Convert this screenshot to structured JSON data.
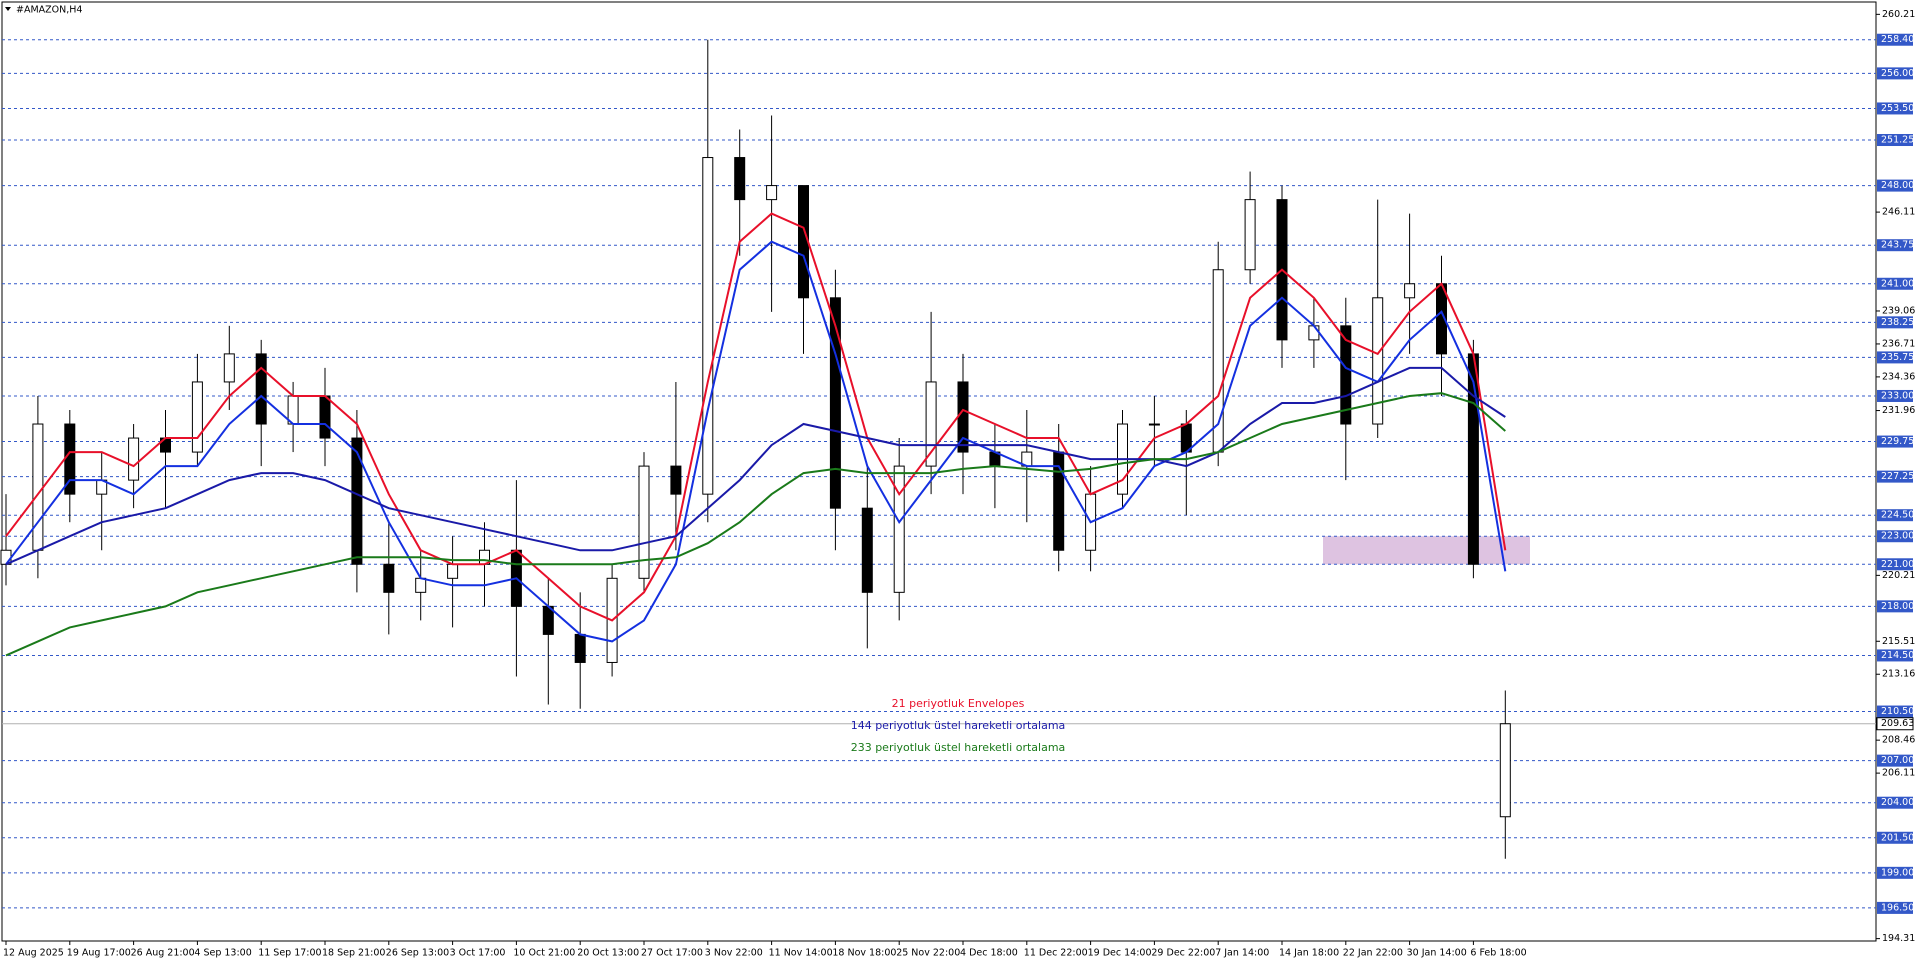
{
  "chart_data": {
    "type": "candlestick",
    "title": "#AMAZON,H4",
    "categories": [
      "12 Aug 2025",
      null,
      "19 Aug 17:00",
      null,
      "26 Aug 21:00",
      null,
      "4 Sep 13:00",
      null,
      "11 Sep 17:00",
      null,
      "18 Sep 21:00",
      null,
      "26 Sep 13:00",
      null,
      "3 Oct 17:00",
      null,
      "10 Oct 21:00",
      null,
      "20 Oct 13:00",
      null,
      "27 Oct 17:00",
      null,
      "3 Nov 22:00",
      null,
      "11 Nov 14:00",
      null,
      "18 Nov 18:00",
      null,
      "25 Nov 22:00",
      null,
      "4 Dec 18:00",
      null,
      "11 Dec 22:00",
      null,
      "19 Dec 14:00",
      null,
      "29 Dec 22:00",
      null,
      "7 Jan 14:00",
      null,
      "14 Jan 18:00",
      null,
      "22 Jan 22:00",
      null,
      "30 Jan 14:00",
      null,
      "6 Feb 18:00",
      null
    ],
    "open": [
      221,
      222,
      231,
      226,
      227,
      230,
      229,
      234,
      236,
      231,
      233,
      230,
      221,
      219,
      220,
      221,
      222,
      218,
      216,
      214,
      220,
      228,
      226,
      250,
      247,
      248,
      240,
      225,
      219,
      228,
      234,
      229,
      228,
      229,
      222,
      226,
      231,
      231,
      229,
      242,
      247,
      237,
      238,
      231,
      240,
      241,
      236,
      203
    ],
    "high": [
      226,
      233,
      232,
      229,
      231,
      232,
      236,
      238,
      237,
      234,
      235,
      232,
      224,
      222,
      223,
      224,
      227,
      220,
      219,
      221,
      229,
      234,
      258.4,
      252,
      253,
      248,
      242,
      228,
      230,
      239,
      236,
      231,
      232,
      231,
      228,
      232,
      233,
      232,
      244,
      249,
      248,
      240,
      240,
      247,
      246,
      243,
      237,
      212
    ],
    "low": [
      219.5,
      220,
      224,
      222,
      225,
      225,
      228,
      232,
      228,
      229,
      228,
      219,
      216,
      217,
      216.5,
      218,
      213,
      211,
      210.7,
      213,
      219,
      222,
      224,
      243,
      239,
      236,
      222,
      215,
      217,
      226,
      226,
      225,
      224,
      220.5,
      220.5,
      225,
      228,
      224.5,
      228,
      241,
      235,
      235,
      227,
      230,
      236,
      233,
      220,
      200
    ],
    "close": [
      222,
      231,
      226,
      227,
      230,
      229,
      234,
      236,
      231,
      233,
      230,
      221,
      219,
      220,
      221,
      222,
      218,
      216,
      214,
      220,
      228,
      226,
      250,
      247,
      248,
      240,
      225,
      219,
      228,
      234,
      229,
      228,
      229,
      222,
      226,
      231,
      231,
      229,
      242,
      247,
      237,
      238,
      231,
      240,
      241,
      236,
      221,
      209.63
    ],
    "color_up": "#ffffff",
    "color_down": "#000000",
    "ylim": [
      194.14,
      261.09
    ],
    "yticks": [
      260.21,
      246.11,
      239.06,
      236.71,
      234.36,
      231.96,
      220.21,
      215.51,
      213.16,
      208.46,
      206.11,
      194.31
    ],
    "levels": [
      {
        "value": 258.4,
        "label": "258.40"
      },
      {
        "value": 256,
        "label": "256.00"
      },
      {
        "value": 253.5,
        "label": "253.50"
      },
      {
        "value": 251.25,
        "label": "251.25"
      },
      {
        "value": 248,
        "label": "248.00"
      },
      {
        "value": 243.75,
        "label": "243.75"
      },
      {
        "value": 241,
        "label": "241.00"
      },
      {
        "value": 238.25,
        "label": "238.25"
      },
      {
        "value": 235.75,
        "label": "235.75"
      },
      {
        "value": 233,
        "label": "233.00"
      },
      {
        "value": 229.75,
        "label": "229.75"
      },
      {
        "value": 227.25,
        "label": "227.25"
      },
      {
        "value": 224.5,
        "label": "224.50"
      },
      {
        "value": 223,
        "label": "223.00"
      },
      {
        "value": 221,
        "label": "221.00"
      },
      {
        "value": 218,
        "label": "218.00"
      },
      {
        "value": 214.5,
        "label": "214.50"
      },
      {
        "value": 210.5,
        "label": "210.50"
      },
      {
        "value": 207,
        "label": "207.00"
      },
      {
        "value": 204,
        "label": "204.00"
      },
      {
        "value": 201.5,
        "label": "201.50"
      },
      {
        "value": 199,
        "label": "199.00"
      },
      {
        "value": 196.5,
        "label": "196.50"
      }
    ],
    "level_color": "#3358c8",
    "last_price": 209.63,
    "zone": {
      "y0": 221,
      "y1": 223,
      "color": "#d8b8dc"
    },
    "series": [
      {
        "name": "21 periyotluk Envelopes",
        "color": "#e8102a",
        "values": [
          223,
          226,
          229,
          229,
          228,
          230,
          230,
          233,
          235,
          233,
          233,
          231,
          226,
          222,
          221,
          221,
          222,
          220,
          218,
          217,
          219,
          223,
          234,
          244,
          246,
          245,
          238,
          230,
          226,
          229,
          232,
          231,
          230,
          230,
          226,
          227,
          230,
          231,
          233,
          240,
          242,
          240,
          237,
          236,
          239,
          241,
          236,
          222
        ],
        "lower_color": "#1430e0",
        "lower": [
          221,
          224,
          227,
          227,
          226,
          228,
          228,
          231,
          233,
          231,
          231,
          229,
          224,
          220,
          219.5,
          219.5,
          220,
          218,
          216,
          215.5,
          217,
          221,
          232,
          242,
          244,
          243,
          236,
          228,
          224,
          227,
          230,
          229,
          228,
          228,
          224,
          225,
          228,
          229,
          231,
          238,
          240,
          238,
          235,
          234,
          237,
          239,
          234,
          220.5
        ]
      },
      {
        "name": "144 periyotluk üstel hareketli ortalama",
        "color": "#1a1aa8",
        "values": [
          221,
          222,
          223,
          224,
          224.5,
          225,
          226,
          227,
          227.5,
          227.5,
          227,
          226,
          225,
          224.5,
          224,
          223.5,
          223,
          222.5,
          222,
          222,
          222.5,
          223,
          225,
          227,
          229.5,
          231,
          230.5,
          230,
          229.5,
          229.5,
          229.5,
          229.5,
          229.5,
          229,
          228.5,
          228.5,
          228.5,
          228,
          229,
          231,
          232.5,
          232.5,
          233,
          234,
          235,
          235,
          233,
          231.5
        ]
      },
      {
        "name": "233 periyotluk üstel hareketli ortalama",
        "color": "#1a7a1a",
        "values": [
          214.5,
          215.5,
          216.5,
          217,
          217.5,
          218,
          219,
          219.5,
          220,
          220.5,
          221,
          221.5,
          221.5,
          221.5,
          221.3,
          221.3,
          221,
          221,
          221,
          221,
          221.3,
          221.5,
          222.5,
          224,
          226,
          227.5,
          227.8,
          227.5,
          227.5,
          227.5,
          227.8,
          228,
          227.8,
          227.6,
          227.8,
          228.2,
          228.5,
          228.5,
          229,
          230,
          231,
          231.5,
          232,
          232.5,
          233,
          233.2,
          232.5,
          230.5
        ]
      }
    ]
  }
}
